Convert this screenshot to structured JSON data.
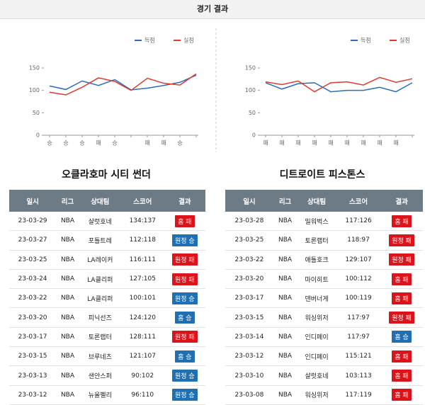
{
  "header": {
    "title": "경기 결과"
  },
  "chart_data": [
    {
      "type": "line",
      "categories": [
        "승",
        "승",
        "승",
        "패",
        "승",
        null,
        "패",
        "패",
        "승",
        null
      ],
      "series": [
        {
          "name": "득점",
          "color": "#2a6ebb",
          "values": [
            110,
            102,
            121,
            111,
            124,
            101,
            105,
            111,
            118,
            134
          ]
        },
        {
          "name": "실점",
          "color": "#e03a2e",
          "values": [
            96,
            90,
            107,
            128,
            120,
            100,
            127,
            116,
            112,
            137
          ]
        }
      ],
      "ylim": [
        0,
        150
      ],
      "yticks": [
        0,
        50,
        100,
        150
      ],
      "grid": false,
      "legend": "top-right"
    },
    {
      "type": "line",
      "categories": [
        "패",
        "패",
        "패",
        "패",
        "패",
        "패",
        "패",
        "패",
        "패",
        null
      ],
      "series": [
        {
          "name": "득점",
          "color": "#2a6ebb",
          "values": [
            117,
            103,
            115,
            117,
            97,
            100,
            100,
            107,
            97,
            117
          ]
        },
        {
          "name": "실점",
          "color": "#e03a2e",
          "values": [
            119,
            113,
            121,
            97,
            117,
            119,
            112,
            129,
            118,
            126
          ]
        }
      ],
      "ylim": [
        0,
        150
      ],
      "yticks": [
        0,
        50,
        100,
        150
      ],
      "grid": false,
      "legend": "top-right"
    }
  ],
  "tables": [
    {
      "title": "오클라호마 시티 썬더",
      "columns": [
        "일시",
        "리그",
        "상대팀",
        "스코어",
        "결과"
      ],
      "rows": [
        {
          "cells": [
            "23-03-29",
            "NBA",
            "샬럿호네",
            "134:137",
            "홈 패"
          ],
          "badge_color": "#d9141b"
        },
        {
          "cells": [
            "23-03-27",
            "NBA",
            "포틀트레",
            "112:118",
            "원정 승"
          ],
          "badge_color": "#1f6fb2"
        },
        {
          "cells": [
            "23-03-25",
            "NBA",
            "LA레이커",
            "116:111",
            "원정 패"
          ],
          "badge_color": "#d9141b"
        },
        {
          "cells": [
            "23-03-24",
            "NBA",
            "LA클리퍼",
            "127:105",
            "원정 패"
          ],
          "badge_color": "#d9141b"
        },
        {
          "cells": [
            "23-03-22",
            "NBA",
            "LA클리퍼",
            "100:101",
            "원정 승"
          ],
          "badge_color": "#1f6fb2"
        },
        {
          "cells": [
            "23-03-20",
            "NBA",
            "피닉선즈",
            "124:120",
            "홈 승"
          ],
          "badge_color": "#1f6fb2"
        },
        {
          "cells": [
            "23-03-17",
            "NBA",
            "토론랩터",
            "128:111",
            "원정 패"
          ],
          "badge_color": "#d9141b"
        },
        {
          "cells": [
            "23-03-15",
            "NBA",
            "브루네츠",
            "121:107",
            "홈 승"
          ],
          "badge_color": "#1f6fb2"
        },
        {
          "cells": [
            "23-03-13",
            "NBA",
            "샌안스퍼",
            "90:102",
            "원정 승"
          ],
          "badge_color": "#1f6fb2"
        },
        {
          "cells": [
            "23-03-12",
            "NBA",
            "뉴올펠리",
            "96:110",
            "원정 승"
          ],
          "badge_color": "#1f6fb2"
        }
      ]
    },
    {
      "title": "디트로이트 피스톤스",
      "columns": [
        "일시",
        "리그",
        "상대팀",
        "스코어",
        "결과"
      ],
      "rows": [
        {
          "cells": [
            "23-03-28",
            "NBA",
            "밀워벅스",
            "117:126",
            "홈 패"
          ],
          "badge_color": "#d9141b"
        },
        {
          "cells": [
            "23-03-25",
            "NBA",
            "토론랩터",
            "118:97",
            "원정 패"
          ],
          "badge_color": "#d9141b"
        },
        {
          "cells": [
            "23-03-22",
            "NBA",
            "애틀호크",
            "129:107",
            "원정 패"
          ],
          "badge_color": "#d9141b"
        },
        {
          "cells": [
            "23-03-20",
            "NBA",
            "마이히트",
            "100:112",
            "홈 패"
          ],
          "badge_color": "#d9141b"
        },
        {
          "cells": [
            "23-03-17",
            "NBA",
            "덴버너게",
            "100:119",
            "홈 패"
          ],
          "badge_color": "#d9141b"
        },
        {
          "cells": [
            "23-03-15",
            "NBA",
            "워싱위저",
            "117:97",
            "원정 패"
          ],
          "badge_color": "#d9141b"
        },
        {
          "cells": [
            "23-03-14",
            "NBA",
            "인디페이",
            "117:97",
            "홈 승"
          ],
          "badge_color": "#1f6fb2"
        },
        {
          "cells": [
            "23-03-12",
            "NBA",
            "인디페이",
            "115:121",
            "홈 패"
          ],
          "badge_color": "#d9141b"
        },
        {
          "cells": [
            "23-03-10",
            "NBA",
            "샬럿호네",
            "103:113",
            "홈 패"
          ],
          "badge_color": "#d9141b"
        },
        {
          "cells": [
            "23-03-08",
            "NBA",
            "워싱위저",
            "117:119",
            "홈 패"
          ],
          "badge_color": "#d9141b"
        }
      ]
    }
  ]
}
